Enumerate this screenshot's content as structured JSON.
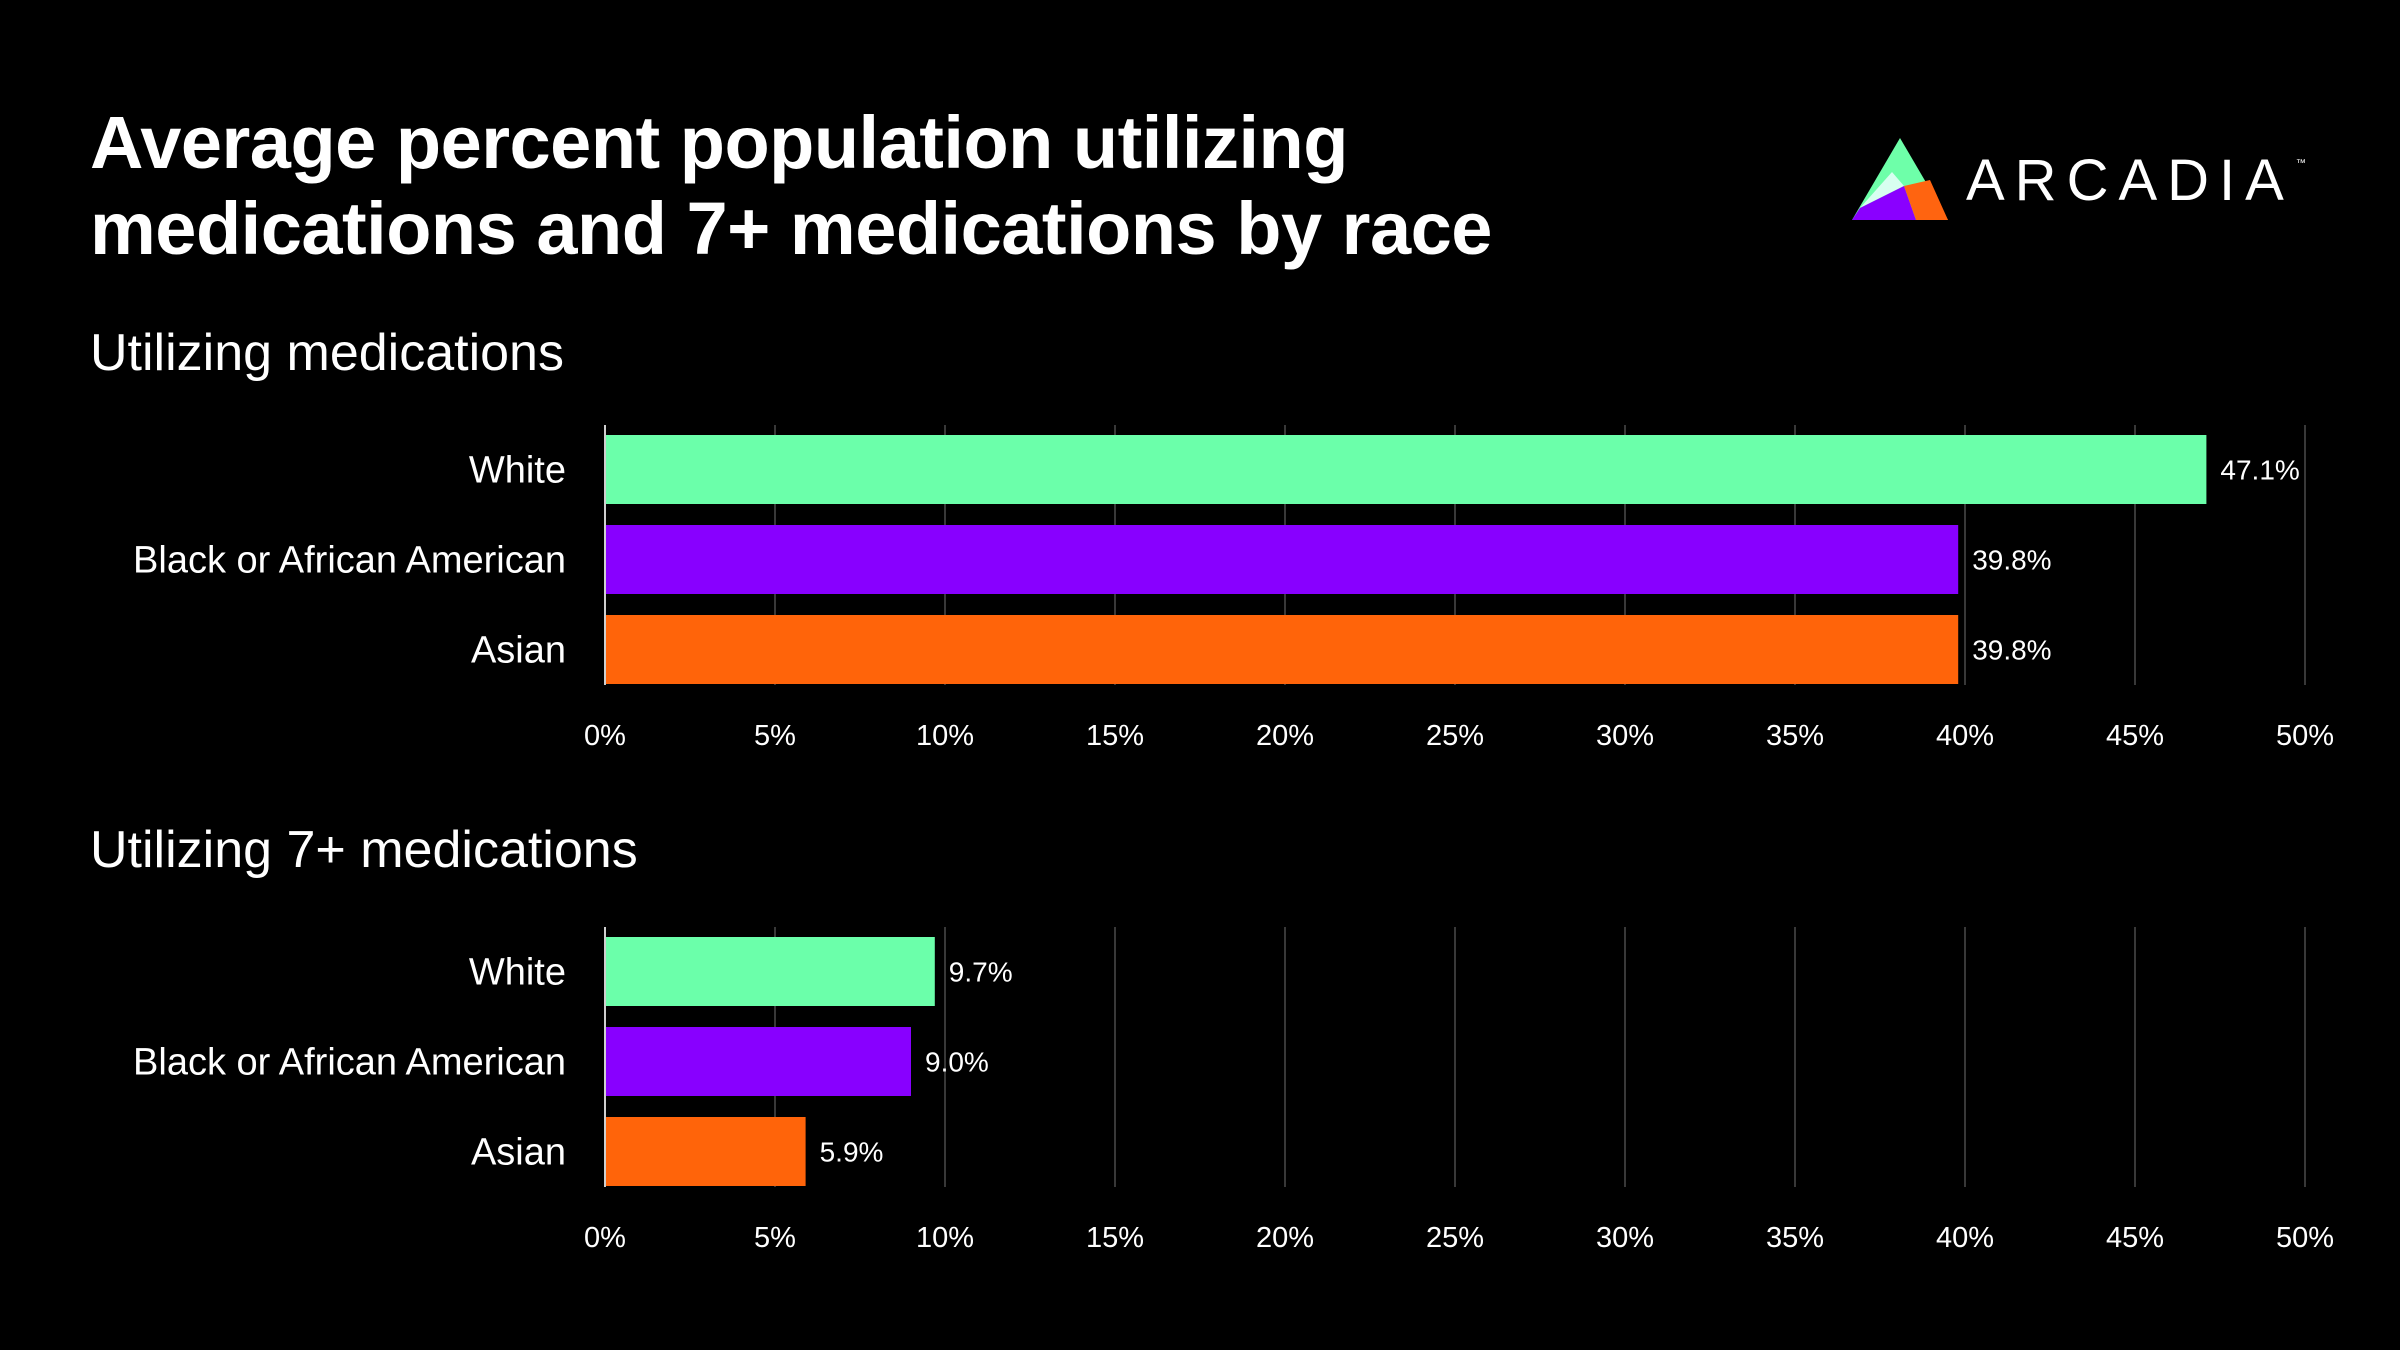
{
  "title_line1": "Average percent population utilizing",
  "title_line2": "medications and 7+ medications by race",
  "logo": {
    "text": "ARCADIA",
    "tm": "™",
    "colors": [
      "#6effa9",
      "#8a00ff",
      "#ff6410",
      "#d8fff0"
    ]
  },
  "colors": {
    "White": "#6bffaa",
    "Black or African American": "#8800ff",
    "Asian": "#ff640a",
    "background": "#000000",
    "grid": "#4a4a4a"
  },
  "chart_data": [
    {
      "type": "bar",
      "orientation": "horizontal",
      "title": "Utilizing medications",
      "categories": [
        "White",
        "Black or African American",
        "Asian"
      ],
      "values": [
        47.1,
        39.8,
        39.8
      ],
      "value_labels": [
        "47.1%",
        "39.8%",
        "39.8%"
      ],
      "xlim": [
        0,
        50
      ],
      "ticks": [
        "0%",
        "5%",
        "10%",
        "15%",
        "20%",
        "25%",
        "30%",
        "35%",
        "40%",
        "45%",
        "50%"
      ],
      "grid": true
    },
    {
      "type": "bar",
      "orientation": "horizontal",
      "title": "Utilizing 7+ medications",
      "categories": [
        "White",
        "Black or African American",
        "Asian"
      ],
      "values": [
        9.7,
        9.0,
        5.9
      ],
      "value_labels": [
        "9.7%",
        "9.0%",
        "5.9%"
      ],
      "xlim": [
        0,
        50
      ],
      "ticks": [
        "0%",
        "5%",
        "10%",
        "15%",
        "20%",
        "25%",
        "30%",
        "35%",
        "40%",
        "45%",
        "50%"
      ],
      "grid": true
    }
  ]
}
